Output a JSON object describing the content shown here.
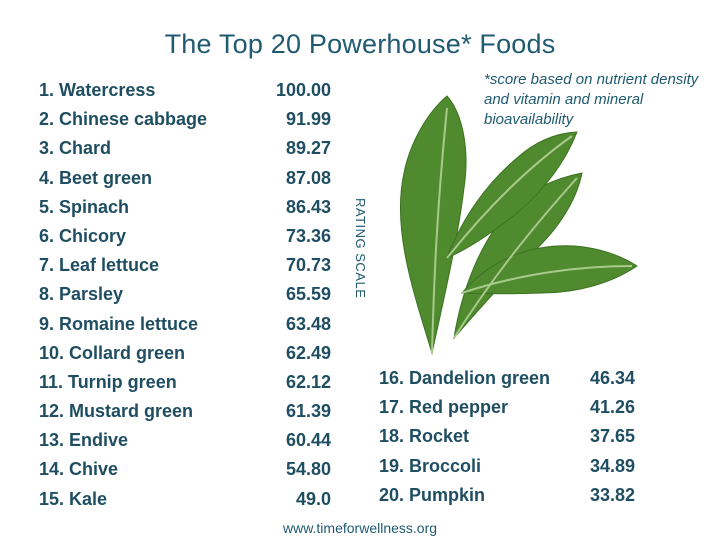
{
  "title": "The Top 20 Powerhouse* Foods",
  "note": "*score based on nutrient density and vitamin and mineral bioavailability",
  "rating_label": "RATING SCALE",
  "footer": "www.timeforwellness.org",
  "foods": [
    {
      "name": "1. Watercress",
      "score": "100.00"
    },
    {
      "name": "2. Chinese cabbage",
      "score": "91.99"
    },
    {
      "name": "3. Chard",
      "score": "89.27"
    },
    {
      "name": "4. Beet green",
      "score": "87.08"
    },
    {
      "name": "5. Spinach",
      "score": "86.43"
    },
    {
      "name": "6. Chicory",
      "score": "73.36"
    },
    {
      "name": "7. Leaf lettuce",
      "score": "70.73"
    },
    {
      "name": "8. Parsley",
      "score": "65.59"
    },
    {
      "name": "9. Romaine lettuce",
      "score": "63.48"
    },
    {
      "name": "10. Collard green",
      "score": "62.49"
    },
    {
      "name": "11. Turnip green",
      "score": "62.12"
    },
    {
      "name": "12. Mustard green",
      "score": "61.39"
    },
    {
      "name": "13. Endive",
      "score": "60.44"
    },
    {
      "name": "14. Chive",
      "score": "54.80"
    },
    {
      "name": "15. Kale",
      "score": "49.0"
    },
    {
      "name": "16. Dandelion green",
      "score": "46.34"
    },
    {
      "name": "17. Red pepper",
      "score": "41.26"
    },
    {
      "name": "18. Rocket",
      "score": "37.65"
    },
    {
      "name": "19. Broccoli",
      "score": "34.89"
    },
    {
      "name": "20. Pumpkin",
      "score": "33.82"
    }
  ]
}
